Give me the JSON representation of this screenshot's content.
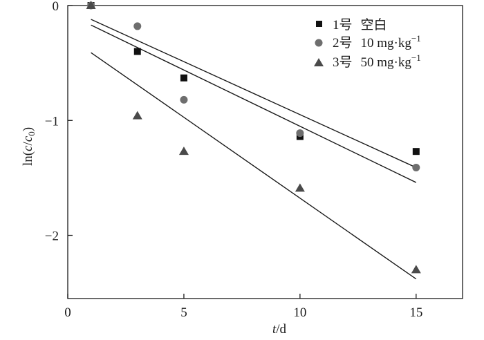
{
  "chart_data": {
    "type": "scatter",
    "xlabel_italic": "t",
    "xlabel_rest": "/d",
    "ylabel_pre": "ln(",
    "ylabel_c": "c",
    "ylabel_slash": "/",
    "ylabel_c0": "c",
    "ylabel_sub": "0",
    "ylabel_post": ")",
    "xlim": [
      0,
      17
    ],
    "ylim": [
      -2.55,
      0
    ],
    "xticks": [
      0,
      5,
      10,
      15
    ],
    "xtick_labels": [
      "0",
      "5",
      "10",
      "15"
    ],
    "yticks": [
      0,
      -1,
      -2
    ],
    "ytick_labels": [
      "0",
      "−1",
      "−2"
    ],
    "grid": false,
    "legend_position": "top-right",
    "series": [
      {
        "name_id": "1号",
        "name_text": "空白",
        "name_sup": "",
        "marker": "square",
        "color": "#111111",
        "points": [
          [
            1,
            0.0
          ],
          [
            3,
            -0.4
          ],
          [
            5,
            -0.63
          ],
          [
            10,
            -1.14
          ],
          [
            15,
            -1.27
          ]
        ],
        "fit_line": [
          [
            1,
            -0.12
          ],
          [
            15,
            -1.41
          ]
        ]
      },
      {
        "name_id": "2号",
        "name_text": "10 mg·kg",
        "name_sup": "−1",
        "marker": "circle",
        "color": "#6e6e6e",
        "points": [
          [
            1,
            0.0
          ],
          [
            3,
            -0.18
          ],
          [
            5,
            -0.82
          ],
          [
            10,
            -1.11
          ],
          [
            15,
            -1.41
          ]
        ],
        "fit_line": [
          [
            1,
            -0.17
          ],
          [
            15,
            -1.54
          ]
        ]
      },
      {
        "name_id": "3号",
        "name_text": "50 mg·kg",
        "name_sup": "−1",
        "marker": "triangle",
        "color": "#4a4a4a",
        "points": [
          [
            1,
            0.0
          ],
          [
            3,
            -0.96
          ],
          [
            5,
            -1.27
          ],
          [
            10,
            -1.59
          ],
          [
            15,
            -2.3
          ]
        ],
        "fit_line": [
          [
            1,
            -0.41
          ],
          [
            15,
            -2.38
          ]
        ]
      }
    ]
  }
}
